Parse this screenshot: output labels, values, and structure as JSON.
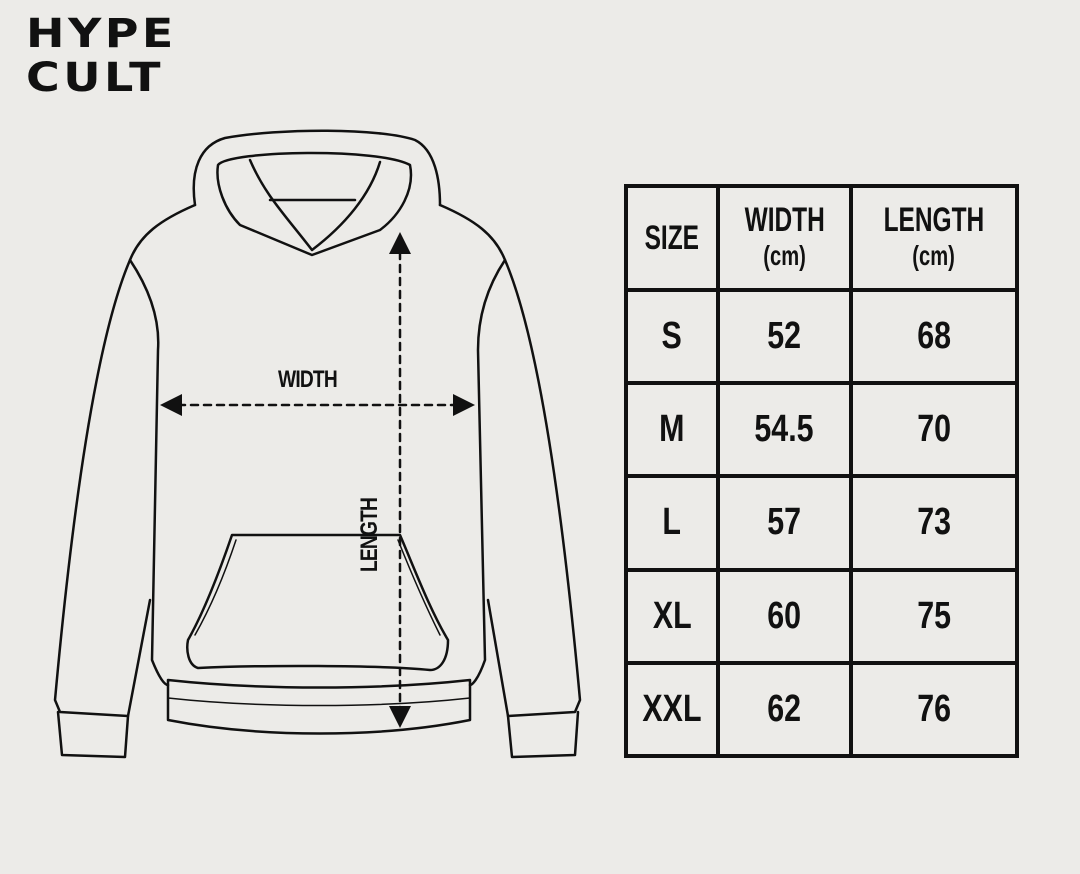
{
  "brand": {
    "line1": "HYPE",
    "line2": "CULT"
  },
  "diagram": {
    "width_label": "WIDTH",
    "length_label": "LENGTH"
  },
  "table": {
    "headers": [
      {
        "title": "SIZE",
        "unit": ""
      },
      {
        "title": "WIDTH",
        "unit": "(cm)"
      },
      {
        "title": "LENGTH",
        "unit": "(cm)"
      }
    ],
    "rows": [
      {
        "size": "S",
        "width": "52",
        "length": "68"
      },
      {
        "size": "M",
        "width": "54.5",
        "length": "70"
      },
      {
        "size": "L",
        "width": "57",
        "length": "73"
      },
      {
        "size": "XL",
        "width": "60",
        "length": "75"
      },
      {
        "size": "XXL",
        "width": "62",
        "length": "76"
      }
    ]
  }
}
